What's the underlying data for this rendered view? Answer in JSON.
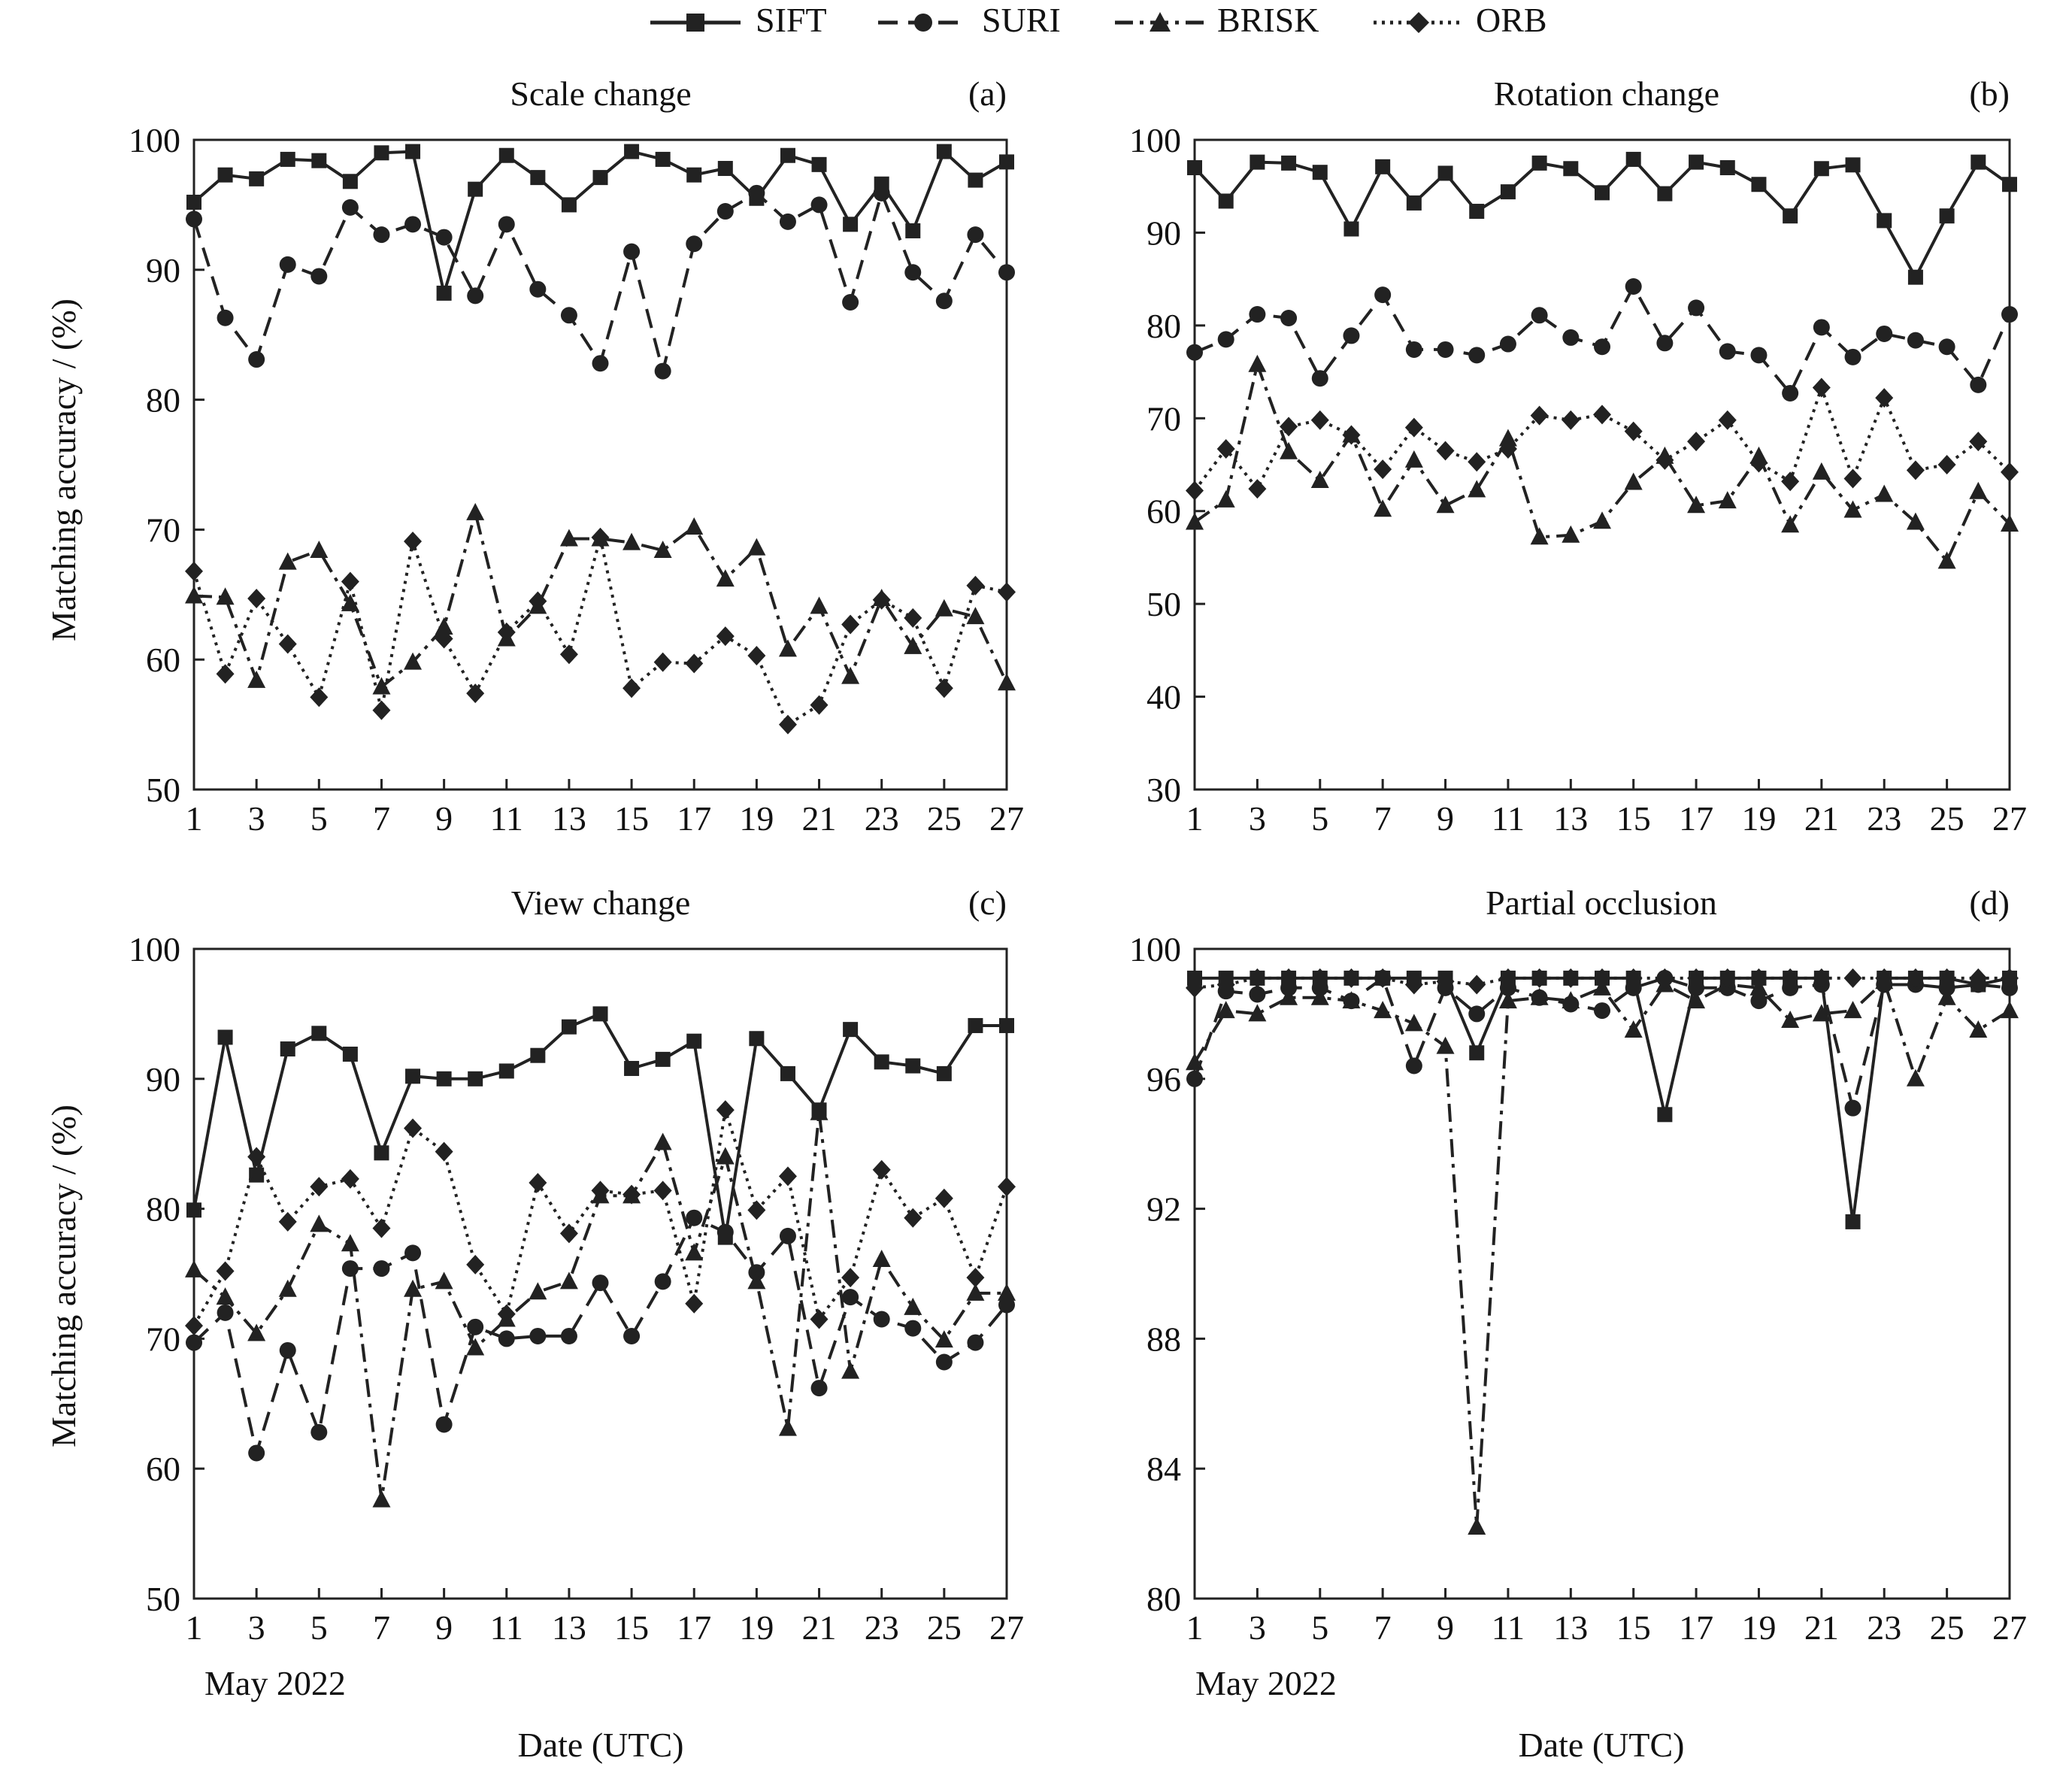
{
  "figure": {
    "y_axis_label": "Matching accuracy / (%)",
    "x_axis_label": "Date (UTC)",
    "month_label": "May 2022",
    "legend": [
      {
        "name": "SIFT",
        "marker": "square",
        "dash": "solid"
      },
      {
        "name": "SURI",
        "marker": "circle",
        "dash": "dashed"
      },
      {
        "name": "BRISK",
        "marker": "triangle",
        "dash": "dashdot"
      },
      {
        "name": "ORB",
        "marker": "diamond",
        "dash": "dotted"
      }
    ]
  },
  "chart_data": [
    {
      "type": "line",
      "panel": "(a)",
      "title": "Scale change",
      "xlabel": "",
      "ylabel": "Matching accuracy / (%)",
      "xlim": [
        1,
        27
      ],
      "ylim": [
        50,
        100
      ],
      "xticks": [
        1,
        3,
        5,
        7,
        9,
        11,
        13,
        15,
        17,
        19,
        21,
        23,
        25,
        27
      ],
      "yticks": [
        50,
        60,
        70,
        80,
        90,
        100
      ],
      "x": [
        1,
        2,
        3,
        4,
        5,
        6,
        7,
        8,
        9,
        10,
        11,
        12,
        13,
        14,
        15,
        16,
        17,
        18,
        19,
        20,
        21,
        22,
        23,
        24,
        25,
        26,
        27
      ],
      "series": [
        {
          "name": "SIFT",
          "values": [
            95.2,
            97.3,
            97.0,
            98.5,
            98.4,
            96.8,
            99.0,
            99.1,
            88.2,
            96.2,
            98.8,
            97.1,
            95.0,
            97.1,
            99.1,
            98.5,
            97.3,
            97.8,
            95.5,
            98.8,
            98.1,
            93.5,
            96.6,
            93.0,
            99.1,
            96.9,
            98.3
          ]
        },
        {
          "name": "SURI",
          "values": [
            93.9,
            86.3,
            83.1,
            90.4,
            89.5,
            94.8,
            92.7,
            93.5,
            92.5,
            88.0,
            93.5,
            88.5,
            86.5,
            82.8,
            91.4,
            82.2,
            92.0,
            94.5,
            95.9,
            93.7,
            95.0,
            87.5,
            95.9,
            89.8,
            87.6,
            92.7,
            89.8
          ]
        },
        {
          "name": "BRISK",
          "values": [
            64.9,
            64.8,
            58.4,
            67.5,
            68.4,
            64.3,
            57.9,
            59.8,
            62.5,
            71.3,
            61.6,
            64.1,
            69.3,
            69.3,
            69.0,
            68.4,
            70.2,
            66.2,
            68.6,
            60.8,
            64.1,
            58.7,
            64.7,
            61.0,
            63.9,
            63.3,
            58.2
          ]
        },
        {
          "name": "ORB",
          "values": [
            66.8,
            58.9,
            64.7,
            61.2,
            57.1,
            66.0,
            56.1,
            69.1,
            61.6,
            57.4,
            62.1,
            64.5,
            60.4,
            69.4,
            57.8,
            59.8,
            59.7,
            61.8,
            60.3,
            55.0,
            56.5,
            62.7,
            64.6,
            63.2,
            57.8,
            65.7,
            65.2
          ]
        }
      ]
    },
    {
      "type": "line",
      "panel": "(b)",
      "title": "Rotation change",
      "xlabel": "",
      "ylabel": "",
      "xlim": [
        1,
        27
      ],
      "ylim": [
        30,
        100
      ],
      "xticks": [
        1,
        3,
        5,
        7,
        9,
        11,
        13,
        15,
        17,
        19,
        21,
        23,
        25,
        27
      ],
      "yticks": [
        30,
        40,
        50,
        60,
        70,
        80,
        90,
        100
      ],
      "x": [
        1,
        2,
        3,
        4,
        5,
        6,
        7,
        8,
        9,
        10,
        11,
        12,
        13,
        14,
        15,
        16,
        17,
        18,
        19,
        20,
        21,
        22,
        23,
        24,
        25,
        26,
        27
      ],
      "series": [
        {
          "name": "SIFT",
          "values": [
            97.0,
            93.4,
            97.6,
            97.5,
            96.5,
            90.4,
            97.1,
            93.2,
            96.4,
            92.3,
            94.4,
            97.5,
            96.9,
            94.3,
            97.9,
            94.2,
            97.6,
            97.0,
            95.2,
            91.8,
            96.9,
            97.3,
            91.3,
            85.2,
            91.8,
            97.6,
            95.2
          ]
        },
        {
          "name": "SURI",
          "values": [
            77.1,
            78.5,
            81.2,
            80.8,
            74.3,
            78.9,
            83.3,
            77.4,
            77.4,
            76.8,
            78.0,
            81.1,
            78.7,
            77.7,
            84.2,
            78.1,
            81.9,
            77.2,
            76.8,
            72.7,
            79.8,
            76.6,
            79.1,
            78.4,
            77.7,
            73.6,
            81.2
          ]
        },
        {
          "name": "BRISK",
          "values": [
            58.8,
            61.2,
            75.8,
            66.4,
            63.3,
            68.2,
            60.2,
            65.5,
            60.6,
            62.3,
            67.8,
            57.2,
            57.4,
            58.9,
            63.1,
            65.9,
            60.6,
            61.1,
            65.9,
            58.5,
            64.2,
            60.1,
            61.8,
            58.8,
            54.6,
            62.1,
            58.6
          ]
        },
        {
          "name": "ORB",
          "values": [
            62.2,
            66.7,
            62.4,
            69.1,
            69.8,
            68.2,
            64.5,
            69.0,
            66.5,
            65.3,
            66.7,
            70.3,
            69.8,
            70.4,
            68.6,
            65.5,
            67.5,
            69.8,
            65.2,
            63.2,
            73.3,
            63.5,
            72.2,
            64.4,
            65.0,
            67.5,
            64.2
          ]
        }
      ]
    },
    {
      "type": "line",
      "panel": "(c)",
      "title": "View change",
      "xlabel": "Date (UTC)",
      "ylabel": "Matching accuracy / (%)",
      "xlim": [
        1,
        27
      ],
      "ylim": [
        50,
        100
      ],
      "xticks": [
        1,
        3,
        5,
        7,
        9,
        11,
        13,
        15,
        17,
        19,
        21,
        23,
        25,
        27
      ],
      "yticks": [
        50,
        60,
        70,
        80,
        90,
        100
      ],
      "x": [
        1,
        2,
        3,
        4,
        5,
        6,
        7,
        8,
        9,
        10,
        11,
        12,
        13,
        14,
        15,
        16,
        17,
        18,
        19,
        20,
        21,
        22,
        23,
        24,
        25,
        26,
        27
      ],
      "series": [
        {
          "name": "SIFT",
          "values": [
            79.9,
            93.2,
            82.6,
            92.3,
            93.5,
            91.9,
            84.3,
            90.2,
            90.0,
            90.0,
            90.6,
            91.8,
            94.0,
            95.0,
            90.8,
            91.5,
            92.9,
            77.8,
            93.1,
            90.4,
            87.6,
            93.8,
            91.3,
            91.0,
            90.4,
            94.1,
            94.1
          ]
        },
        {
          "name": "SURI",
          "values": [
            69.7,
            72.0,
            61.2,
            69.1,
            62.8,
            75.4,
            75.4,
            76.6,
            63.4,
            70.9,
            70.0,
            70.2,
            70.2,
            74.3,
            70.2,
            74.4,
            79.3,
            78.2,
            75.1,
            77.9,
            66.2,
            73.2,
            71.5,
            70.8,
            68.2,
            69.7,
            72.6
          ]
        },
        {
          "name": "BRISK",
          "values": [
            75.3,
            73.2,
            70.4,
            73.8,
            78.8,
            77.3,
            57.6,
            73.8,
            74.4,
            69.3,
            71.5,
            73.6,
            74.4,
            81.0,
            81.0,
            85.1,
            76.6,
            84.0,
            74.4,
            63.1,
            87.4,
            67.5,
            76.1,
            72.4,
            69.9,
            73.5,
            73.5
          ]
        },
        {
          "name": "ORB",
          "values": [
            71.0,
            75.2,
            84.0,
            79.0,
            81.7,
            82.3,
            78.5,
            86.2,
            84.4,
            75.7,
            71.9,
            82.0,
            78.1,
            81.4,
            81.1,
            81.4,
            72.7,
            87.6,
            79.9,
            82.5,
            71.5,
            74.7,
            83.0,
            79.3,
            80.8,
            74.7,
            81.7
          ]
        }
      ]
    },
    {
      "type": "line",
      "panel": "(d)",
      "title": "Partial occlusion",
      "xlabel": "Date (UTC)",
      "ylabel": "",
      "xlim": [
        1,
        27
      ],
      "ylim": [
        80,
        100
      ],
      "xticks": [
        1,
        3,
        5,
        7,
        9,
        11,
        13,
        15,
        17,
        19,
        21,
        23,
        25,
        27
      ],
      "yticks": [
        80,
        84,
        88,
        92,
        96,
        100
      ],
      "x": [
        1,
        2,
        3,
        4,
        5,
        6,
        7,
        8,
        9,
        10,
        11,
        12,
        13,
        14,
        15,
        16,
        17,
        18,
        19,
        20,
        21,
        22,
        23,
        24,
        25,
        26,
        27
      ],
      "series": [
        {
          "name": "SIFT",
          "values": [
            99.1,
            99.1,
            99.1,
            99.1,
            99.1,
            99.1,
            99.1,
            99.1,
            99.1,
            96.8,
            99.1,
            99.1,
            99.1,
            99.1,
            99.1,
            94.9,
            99.1,
            99.1,
            99.1,
            99.1,
            99.1,
            91.6,
            99.1,
            99.1,
            99.1,
            98.9,
            99.1
          ]
        },
        {
          "name": "SURI",
          "values": [
            96.0,
            98.7,
            98.6,
            98.8,
            98.8,
            98.4,
            99.1,
            96.4,
            98.8,
            98.0,
            98.8,
            98.5,
            98.3,
            98.1,
            98.8,
            99.1,
            98.8,
            98.8,
            98.4,
            98.8,
            98.9,
            95.1,
            98.9,
            98.9,
            98.8,
            98.9,
            98.8
          ]
        },
        {
          "name": "BRISK",
          "values": [
            96.5,
            98.1,
            98.0,
            98.5,
            98.5,
            98.4,
            98.1,
            97.7,
            97.0,
            82.2,
            98.4,
            98.5,
            98.4,
            98.8,
            97.5,
            98.9,
            98.4,
            98.9,
            98.8,
            97.8,
            98.0,
            98.1,
            99.0,
            96.0,
            98.5,
            97.5,
            98.1
          ]
        },
        {
          "name": "ORB",
          "values": [
            98.8,
            98.9,
            99.1,
            99.1,
            99.1,
            99.1,
            99.1,
            98.9,
            99.0,
            98.9,
            99.1,
            99.1,
            99.1,
            99.1,
            99.1,
            99.1,
            99.1,
            99.1,
            99.1,
            99.1,
            99.1,
            99.1,
            99.1,
            99.1,
            99.1,
            99.1,
            99.1
          ]
        }
      ]
    }
  ]
}
